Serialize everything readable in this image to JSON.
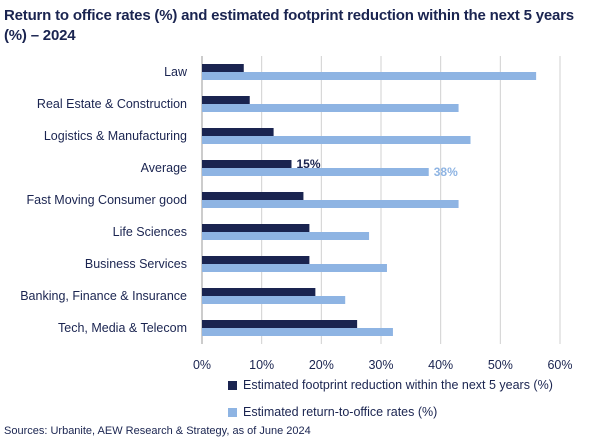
{
  "title": "Return to office rates (%) and estimated footprint reduction within the next 5 years (%) – 2024",
  "source": "Sources: Urbanite, AEW Research & Strategy, as of June 2024",
  "colors": {
    "series1": "#1a2450",
    "series2": "#8eb4e3",
    "grid": "#d0d0d0",
    "text": "#1a2450"
  },
  "chart_data": {
    "type": "bar",
    "orientation": "horizontal",
    "categories": [
      "Law",
      "Real Estate & Construction",
      "Logistics & Manufacturing",
      "Average",
      "Fast Moving Consumer good",
      "Life Sciences",
      "Business Services",
      "Banking, Finance & Insurance",
      "Tech, Media & Telecom"
    ],
    "series": [
      {
        "name": "Estimated footprint reduction within the next 5 years (%)",
        "values": [
          7,
          8,
          12,
          15,
          17,
          18,
          18,
          19,
          26
        ]
      },
      {
        "name": "Estimated return-to-office rates (%)",
        "values": [
          56,
          43,
          45,
          38,
          43,
          28,
          31,
          24,
          32
        ]
      }
    ],
    "data_labels": [
      {
        "category": "Average",
        "series": 0,
        "text": "15%"
      },
      {
        "category": "Average",
        "series": 1,
        "text": "38%"
      }
    ],
    "xticks": [
      "0%",
      "10%",
      "20%",
      "30%",
      "40%",
      "50%",
      "60%"
    ],
    "xlim": [
      0,
      60
    ],
    "grid": true,
    "legend_position": "bottom"
  }
}
